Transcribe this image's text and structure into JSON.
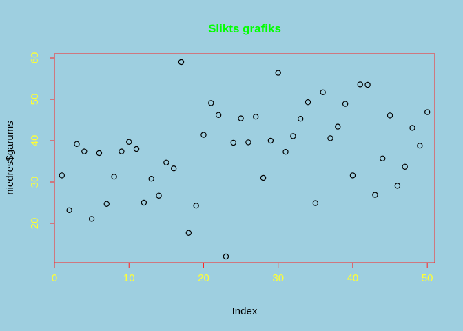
{
  "chart_data": {
    "type": "scatter",
    "title": "Slikts grafiks",
    "xlabel": "Index",
    "ylabel": "niedres$garums",
    "xlim": [
      0,
      51
    ],
    "ylim": [
      10.5,
      61
    ],
    "x_ticks": [
      0,
      10,
      20,
      30,
      40,
      50
    ],
    "y_ticks": [
      20,
      30,
      40,
      50,
      60
    ],
    "grid": false,
    "colors": {
      "background": "#9ecfe0",
      "title": "#00ff00",
      "box": "#ff2020",
      "ticks": "#ffff33",
      "points": "#000000",
      "labels": "#000000"
    },
    "x": [
      1,
      2,
      3,
      4,
      5,
      6,
      7,
      8,
      9,
      10,
      11,
      12,
      13,
      14,
      15,
      16,
      17,
      18,
      19,
      20,
      21,
      22,
      23,
      24,
      25,
      26,
      27,
      28,
      29,
      30,
      31,
      32,
      33,
      34,
      35,
      36,
      37,
      38,
      39,
      40,
      41,
      42,
      43,
      44,
      45,
      46,
      47,
      48,
      49,
      50
    ],
    "y": [
      31.6,
      23.2,
      39.2,
      37.4,
      21.1,
      37.0,
      24.7,
      31.3,
      37.4,
      39.7,
      38.0,
      25.0,
      30.8,
      26.7,
      34.7,
      33.3,
      59.0,
      17.7,
      24.3,
      41.4,
      49.1,
      46.2,
      12.0,
      39.5,
      45.4,
      39.6,
      45.8,
      31.0,
      40.0,
      56.4,
      37.3,
      41.1,
      45.3,
      49.3,
      24.9,
      51.7,
      40.6,
      43.4,
      48.9,
      31.6,
      53.6,
      53.5,
      26.9,
      35.7,
      46.1,
      29.1,
      33.7,
      43.1,
      38.8,
      46.9
    ]
  }
}
